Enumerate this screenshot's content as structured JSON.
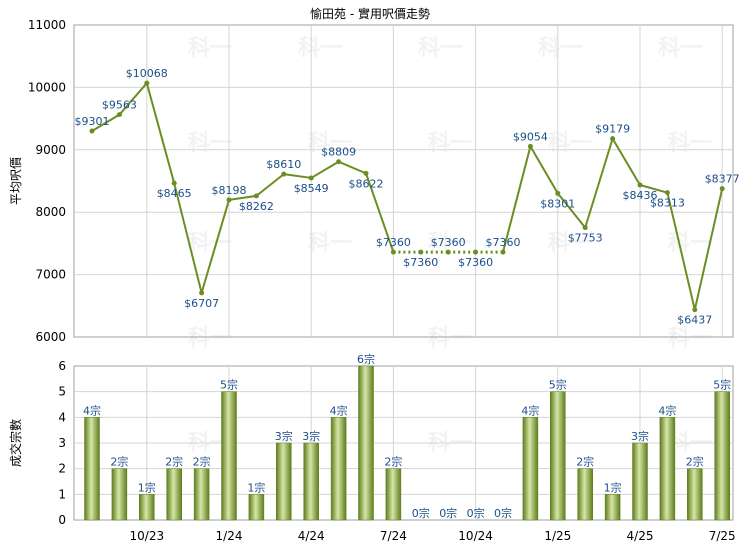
{
  "chart_data": [
    {
      "type": "line",
      "title": "愉田苑 - 實用呎價走勢",
      "ylabel": "平均呎價",
      "ylim": [
        6000,
        11000
      ],
      "yticks": [
        "6000",
        "7000",
        "8000",
        "9000",
        "10000",
        "11000"
      ],
      "x_tick_labels": [
        "10/23",
        "1/24",
        "4/24",
        "7/24",
        "10/24",
        "1/25",
        "4/25",
        "7/25"
      ],
      "line_color": "#6b8e23",
      "values": [
        9301,
        9563,
        10068,
        8465,
        6707,
        8198,
        8262,
        8610,
        8549,
        8809,
        8622,
        7360,
        7360,
        7360,
        7360,
        7360,
        9054,
        8301,
        7753,
        9179,
        8436,
        8313,
        6437,
        8377
      ],
      "labels": [
        "$9301",
        "$9563",
        "$10068",
        "$8465",
        "$6707",
        "$8198",
        "$8262",
        "$8610",
        "$8549",
        "$8809",
        "$8622",
        "$7360",
        "$7360",
        "$7360",
        "$7360",
        "$7360",
        "$9054",
        "$8301",
        "$7753",
        "$9179",
        "$8436",
        "$8313",
        "$6437",
        "$8377"
      ],
      "label_below": [
        false,
        false,
        false,
        true,
        true,
        false,
        true,
        false,
        true,
        false,
        true,
        false,
        true,
        false,
        true,
        false,
        false,
        true,
        true,
        false,
        true,
        true,
        true,
        false
      ],
      "no_data_months": [
        12,
        13,
        14
      ]
    },
    {
      "type": "bar",
      "ylabel": "成交宗數",
      "ylim": [
        0,
        6
      ],
      "yticks": [
        "0",
        "1",
        "2",
        "3",
        "4",
        "5",
        "6"
      ],
      "x_tick_labels": [
        "10/23",
        "1/24",
        "4/24",
        "7/24",
        "10/24",
        "1/25",
        "4/25",
        "7/25"
      ],
      "bar_color": "#7a9a2e",
      "values": [
        4,
        2,
        1,
        2,
        2,
        5,
        1,
        3,
        3,
        4,
        6,
        2,
        0,
        0,
        0,
        0,
        4,
        5,
        2,
        1,
        3,
        4,
        2,
        5
      ],
      "labels": [
        "4宗",
        "2宗",
        "1宗",
        "2宗",
        "2宗",
        "5宗",
        "1宗",
        "3宗",
        "3宗",
        "4宗",
        "6宗",
        "2宗",
        "0宗",
        "0宗",
        "0宗",
        "0宗",
        "4宗",
        "5宗",
        "2宗",
        "1宗",
        "3宗",
        "4宗",
        "2宗",
        "5宗"
      ]
    }
  ],
  "watermark": "科一"
}
